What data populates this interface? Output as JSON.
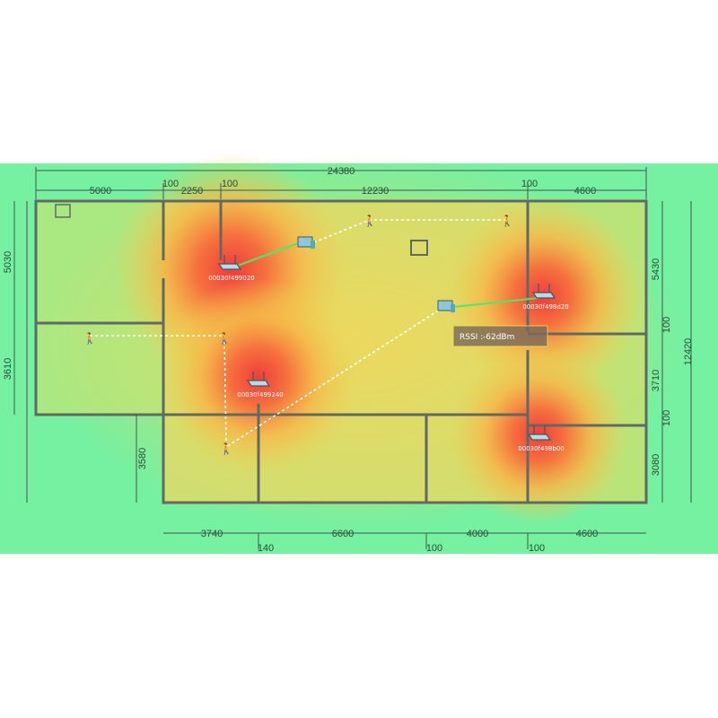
{
  "colors": {
    "background": "#6ef0a4",
    "strong": "#f04a3c",
    "medium": "#f7a83e",
    "weak": "#ecdc5a"
  },
  "dimensions": {
    "top_total": "24380",
    "top": [
      "5000",
      "100",
      "2250",
      "100",
      "12230",
      "100",
      "4600"
    ],
    "right_total": "12420",
    "right": [
      "5430",
      "100",
      "3710",
      "100",
      "3080"
    ],
    "left": [
      "5030",
      "3610",
      "3580"
    ],
    "bottom": [
      "3740",
      "140",
      "6600",
      "100",
      "4000",
      "100",
      "4600"
    ]
  },
  "access_points": [
    {
      "id": "00030f499020",
      "icon": "router-icon"
    },
    {
      "id": "00030f498d20",
      "icon": "router-icon"
    },
    {
      "id": "00030f499240",
      "icon": "router-icon"
    },
    {
      "id": "00030f498b00",
      "icon": "router-icon"
    }
  ],
  "tooltip": {
    "label": "RSSI :",
    "value": "-62dBm"
  }
}
